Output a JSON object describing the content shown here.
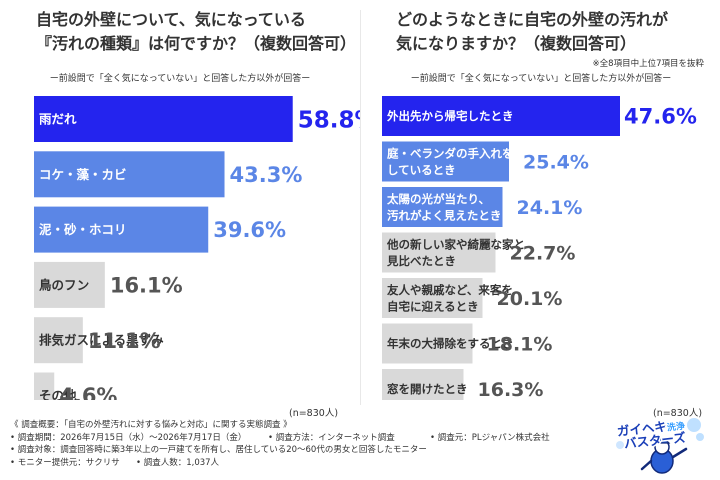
{
  "panels": {
    "left": {
      "title_line1": "自宅の外壁について、気になっている",
      "title_line2": "『汚れの種類』は何ですか？（複数回答可）",
      "subtitle": "ー前設問で「全く気になっていない」と回答した方以外が回答ー",
      "n_label": "(n=830人)"
    },
    "right": {
      "title_line1": "どのようなときに自宅の外壁の汚れが",
      "title_line2": "気になりますか？（複数回答可）",
      "note": "※全8項目中上位7項目を抜粋",
      "subtitle": "ー前設問で「全く気になっていない」と回答した方以外が回答ー",
      "n_label": "(n=830人)"
    }
  },
  "chart_data": [
    {
      "type": "bar",
      "orientation": "horizontal",
      "categories": [
        "雨だれ",
        "コケ・藻・カビ",
        "泥・砂・ホコリ",
        "鳥のフン",
        "排気ガスによる黒ずみ",
        "その他"
      ],
      "values": [
        58.8,
        43.3,
        39.6,
        16.1,
        11.1,
        4.6
      ],
      "value_labels": [
        "58.8%",
        "43.3%",
        "39.6%",
        "16.1%",
        "11.1%",
        "4.6%"
      ],
      "unit": "%",
      "title": "自宅の外壁について、気になっている『汚れの種類』は何ですか？（複数回答可）",
      "colors": [
        "#2424ee",
        "#5b86e6",
        "#5b86e6",
        "#d9d9d9",
        "#d9d9d9",
        "#d9d9d9"
      ],
      "grid": false
    },
    {
      "type": "bar",
      "orientation": "horizontal",
      "categories": [
        "外出先から帰宅したとき",
        "庭・ベランダの手入れを\nしているとき",
        "太陽の光が当たり、\n汚れがよく見えたとき",
        "他の新しい家や綺麗な家と\n見比べたとき",
        "友人や親戚など、来客を\n自宅に迎えるとき",
        "年末の大掃除をするとき",
        "窓を開けたとき"
      ],
      "values": [
        47.6,
        25.4,
        24.1,
        22.7,
        20.1,
        18.1,
        16.3
      ],
      "value_labels": [
        "47.6%",
        "25.4%",
        "24.1%",
        "22.7%",
        "20.1%",
        "18.1%",
        "16.3%"
      ],
      "unit": "%",
      "title": "どのようなときに自宅の外壁の汚れが気になりますか？（複数回答可）",
      "colors": [
        "#2424ee",
        "#5b86e6",
        "#5b86e6",
        "#d9d9d9",
        "#d9d9d9",
        "#d9d9d9",
        "#d9d9d9"
      ],
      "grid": false
    }
  ],
  "footer": {
    "overview": "《 調査概要：「自宅の外壁汚れに対する悩みと対応」に関する実態調査 》",
    "period": "• 調査期間：2026年7月15日（水）〜2026年7月17日（金）",
    "method": "• 調査方法：インターネット調査",
    "source": "• 調査元：PLジャパン株式会社",
    "target": "• 調査対象：調査回答時に築3年以上の一戸建てを所有し、居住している20〜60代の男女と回答したモニター",
    "provider": "• モニター提供元：サクリサ",
    "count": "• 調査人数：1,037人"
  },
  "logo": {
    "line1": "ガイヘキ",
    "line1_suffix": "洗浄",
    "line2": "バスターズ",
    "icon": "mascot-figure-icon"
  }
}
